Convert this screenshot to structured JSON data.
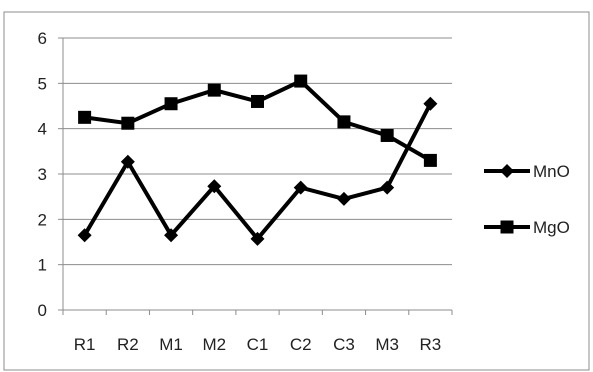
{
  "chart_data": {
    "type": "line",
    "categories": [
      "R1",
      "R2",
      "M1",
      "M2",
      "C1",
      "C2",
      "C3",
      "M3",
      "R3"
    ],
    "series": [
      {
        "name": "MnO",
        "marker": "diamond",
        "values": [
          1.65,
          3.27,
          1.65,
          2.73,
          1.57,
          2.7,
          2.45,
          2.7,
          4.55
        ]
      },
      {
        "name": "MgO",
        "marker": "square",
        "values": [
          4.25,
          4.12,
          4.55,
          4.85,
          4.6,
          5.05,
          4.15,
          3.85,
          3.3
        ]
      }
    ],
    "ylim": [
      0,
      6
    ],
    "yticks": [
      "0",
      "1",
      "2",
      "3",
      "4",
      "5",
      "6"
    ],
    "grid": true,
    "legend": "right",
    "colors": {
      "line": "#000000",
      "grid": "#8c8c8c",
      "frame": "#8c8c8c",
      "text": "#222222"
    }
  }
}
